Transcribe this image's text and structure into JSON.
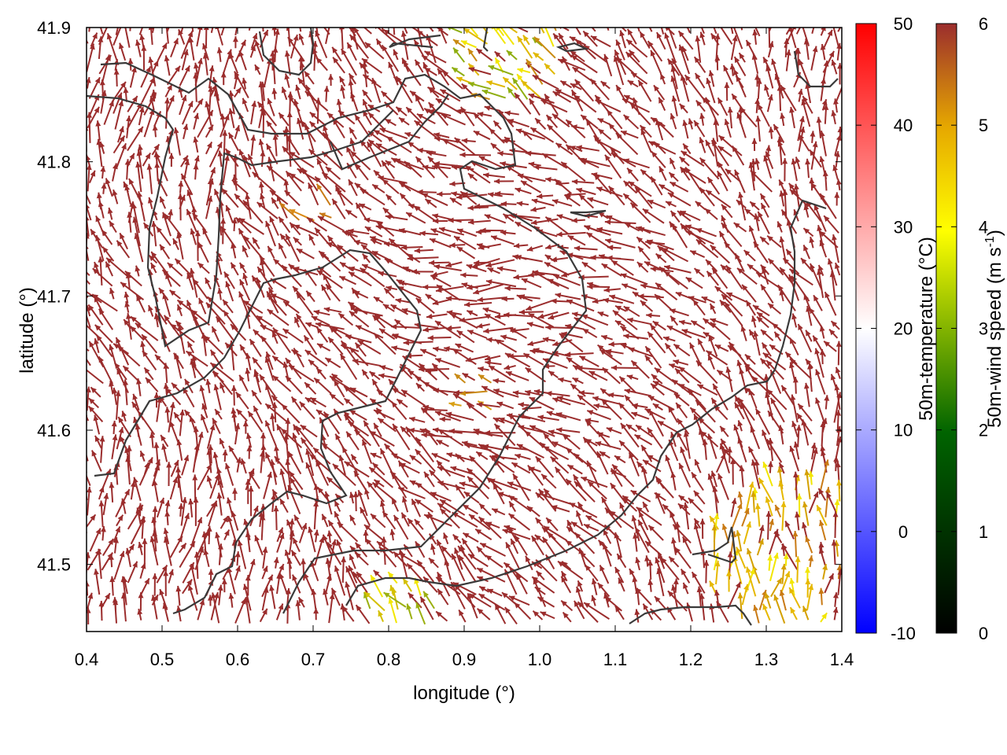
{
  "chart_data": {
    "type": "vector_field",
    "xlabel": "longitude (°)",
    "ylabel": "latitude (°)",
    "xlim": [
      0.4,
      1.4
    ],
    "ylim": [
      41.45,
      41.9
    ],
    "x_ticks": [
      "0.4",
      "0.5",
      "0.6",
      "0.7",
      "0.8",
      "0.9",
      "1.0",
      "1.1",
      "1.2",
      "1.3",
      "1.4"
    ],
    "y_ticks": [
      "41.5",
      "41.6",
      "41.7",
      "41.8",
      "41.9"
    ],
    "vector_color_dominant": "#9b2d2d",
    "contour_color": "#3a3a3a",
    "colorbars": [
      {
        "label": "50m-temperature (°C)",
        "range": [
          -10,
          50
        ],
        "ticks": [
          "50",
          "40",
          "30",
          "20",
          "10",
          "0",
          "-10"
        ],
        "colors": [
          "#0000ff",
          "#ffffff",
          "#ff0000"
        ]
      },
      {
        "label_main": "50m-wind speed (m s",
        "label_sup": "-1",
        "label_end": ")",
        "range": [
          0,
          6
        ],
        "ticks": [
          "6",
          "5",
          "4",
          "3",
          "2",
          "1",
          "0"
        ],
        "colors": [
          "#000000",
          "#006400",
          "#ffff00",
          "#e6a800",
          "#9b2d2d"
        ]
      }
    ]
  }
}
